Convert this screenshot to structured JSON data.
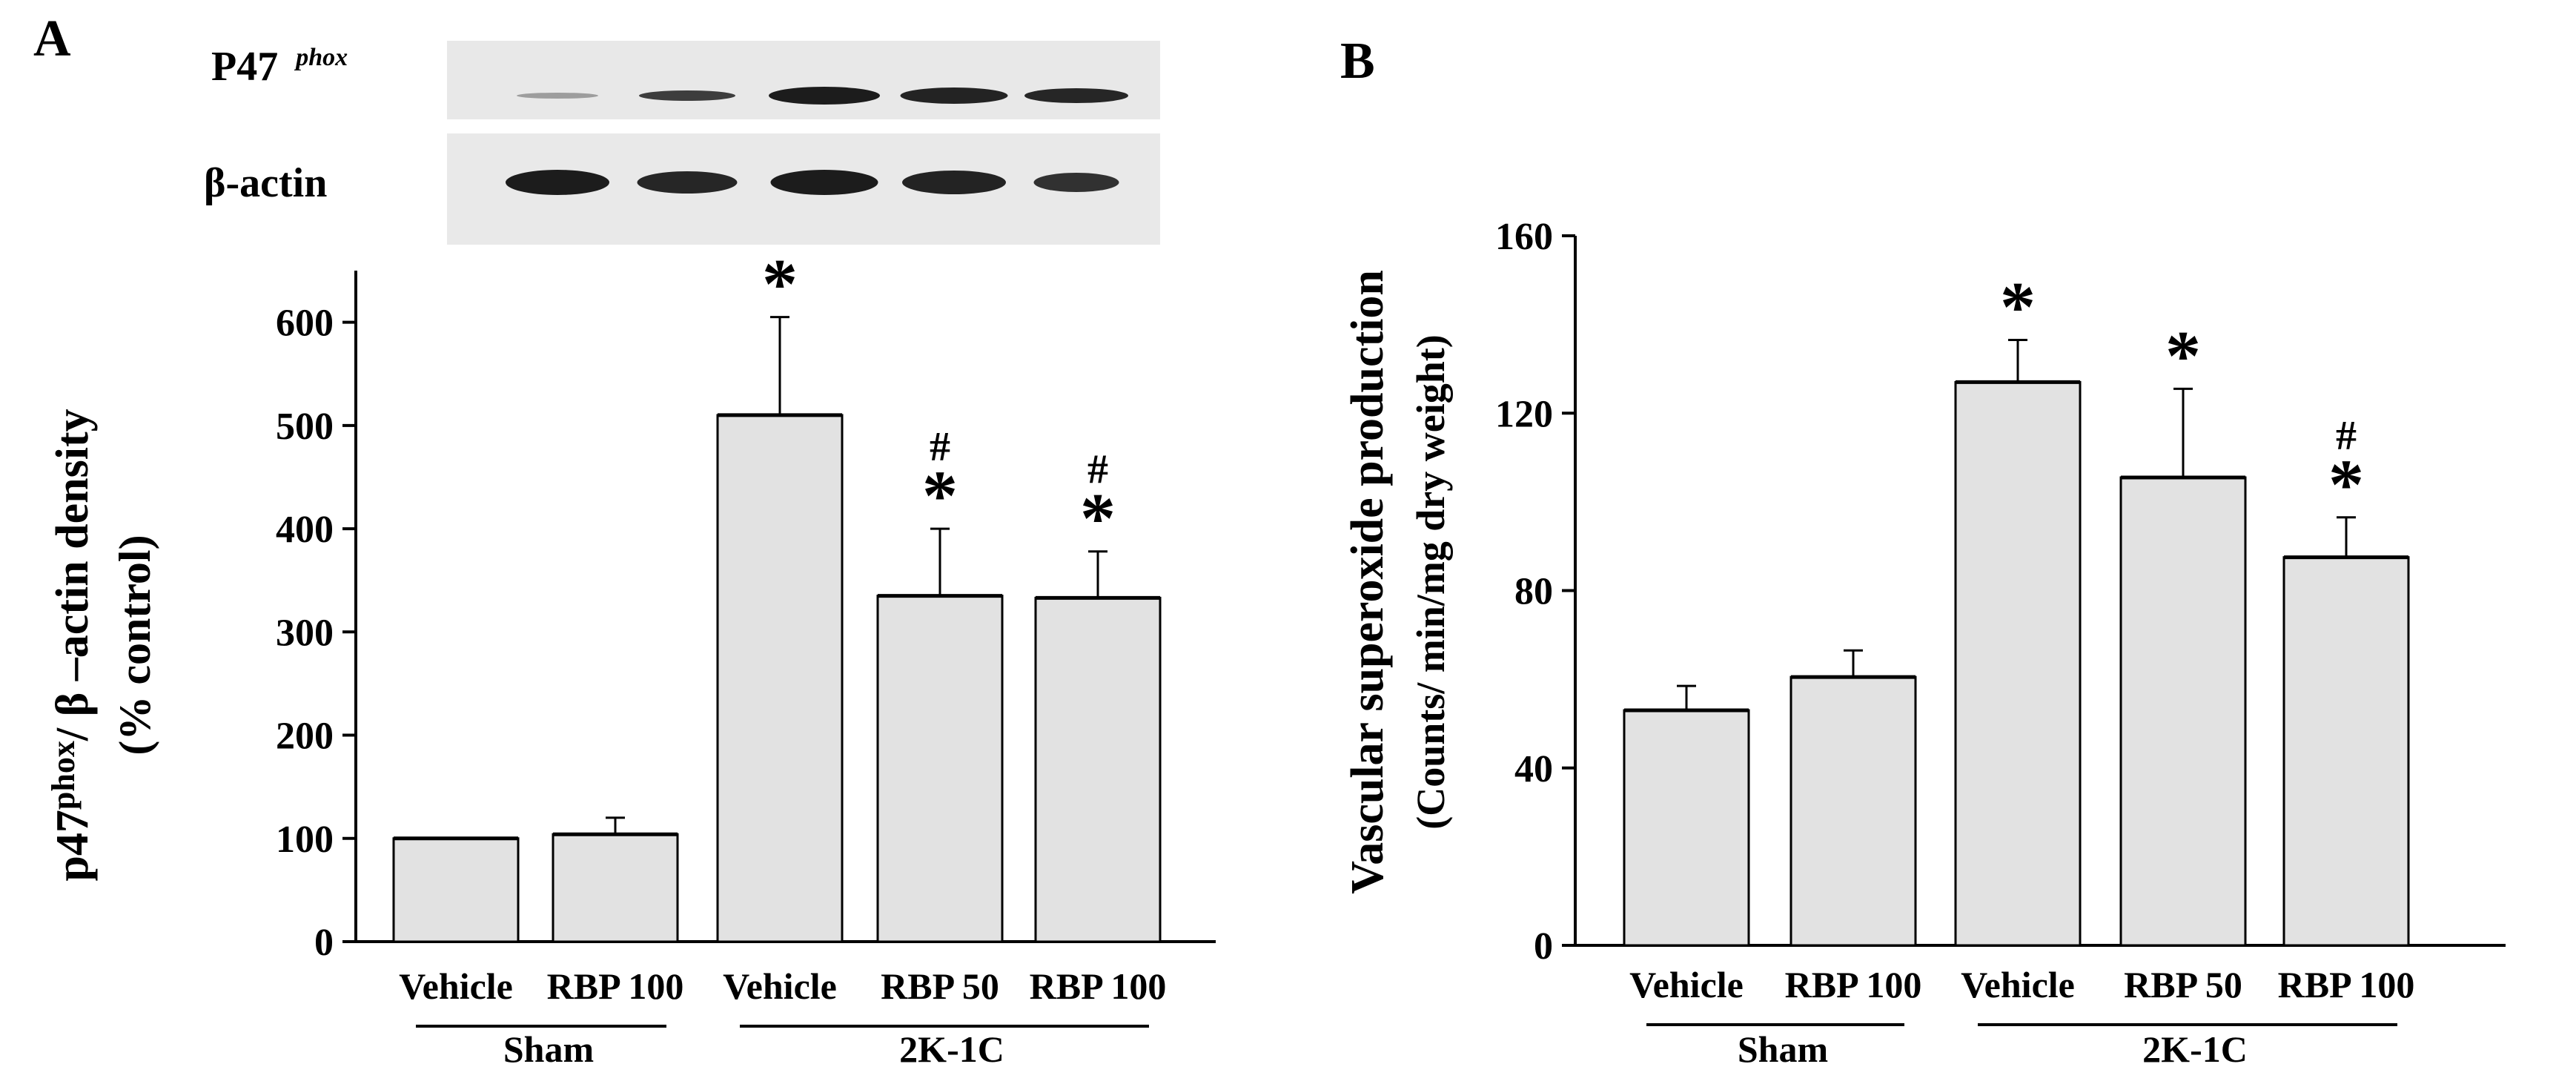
{
  "panels": [
    {
      "label": "A",
      "blot": {
        "rows": [
          {
            "protein": "P47",
            "superscript": "phox"
          },
          {
            "protein": "β-actin",
            "superscript": ""
          }
        ]
      },
      "yaxis_label": {
        "main": "p47",
        "sup": "phox",
        "rest": "/ β –actin density",
        "line2": "(% control)"
      }
    },
    {
      "label": "B",
      "yaxis_label": {
        "line1": "Vascular superoxide production",
        "line2": "(Counts/ min/mg dry weight)"
      }
    }
  ],
  "chart_data": [
    {
      "type": "bar",
      "categories": [
        "Vehicle",
        "RBP 100",
        "Vehicle",
        "RBP 50",
        "RBP 100"
      ],
      "groups": [
        {
          "label": "Sham",
          "members": [
            0,
            1
          ]
        },
        {
          "label": "2K-1C",
          "members": [
            2,
            3,
            4
          ]
        }
      ],
      "values": [
        100,
        104,
        510,
        335,
        333
      ],
      "errors": [
        0,
        16,
        95,
        65,
        45
      ],
      "significance": [
        [],
        [],
        [
          "*"
        ],
        [
          "*",
          "#"
        ],
        [
          "*",
          "#"
        ]
      ],
      "ylim": [
        0,
        650
      ],
      "yticks": [
        0,
        100,
        200,
        300,
        400,
        500,
        600
      ],
      "colors": {
        "bar_fill": "#e2e2e2",
        "bar_stroke": "#000000"
      }
    },
    {
      "type": "bar",
      "categories": [
        "Vehicle",
        "RBP 100",
        "Vehicle",
        "RBP 50",
        "RBP 100"
      ],
      "groups": [
        {
          "label": "Sham",
          "members": [
            0,
            1
          ]
        },
        {
          "label": "2K-1C",
          "members": [
            2,
            3,
            4
          ]
        }
      ],
      "values": [
        53,
        60.5,
        127,
        105.5,
        87.5
      ],
      "errors": [
        5.5,
        6,
        9.5,
        20,
        9
      ],
      "significance": [
        [],
        [],
        [
          "*"
        ],
        [
          "*"
        ],
        [
          "*",
          "#"
        ]
      ],
      "ylim": [
        0,
        160
      ],
      "yticks": [
        0,
        40,
        80,
        120,
        160
      ],
      "colors": {
        "bar_fill": "#e2e2e2",
        "bar_stroke": "#000000"
      }
    }
  ]
}
